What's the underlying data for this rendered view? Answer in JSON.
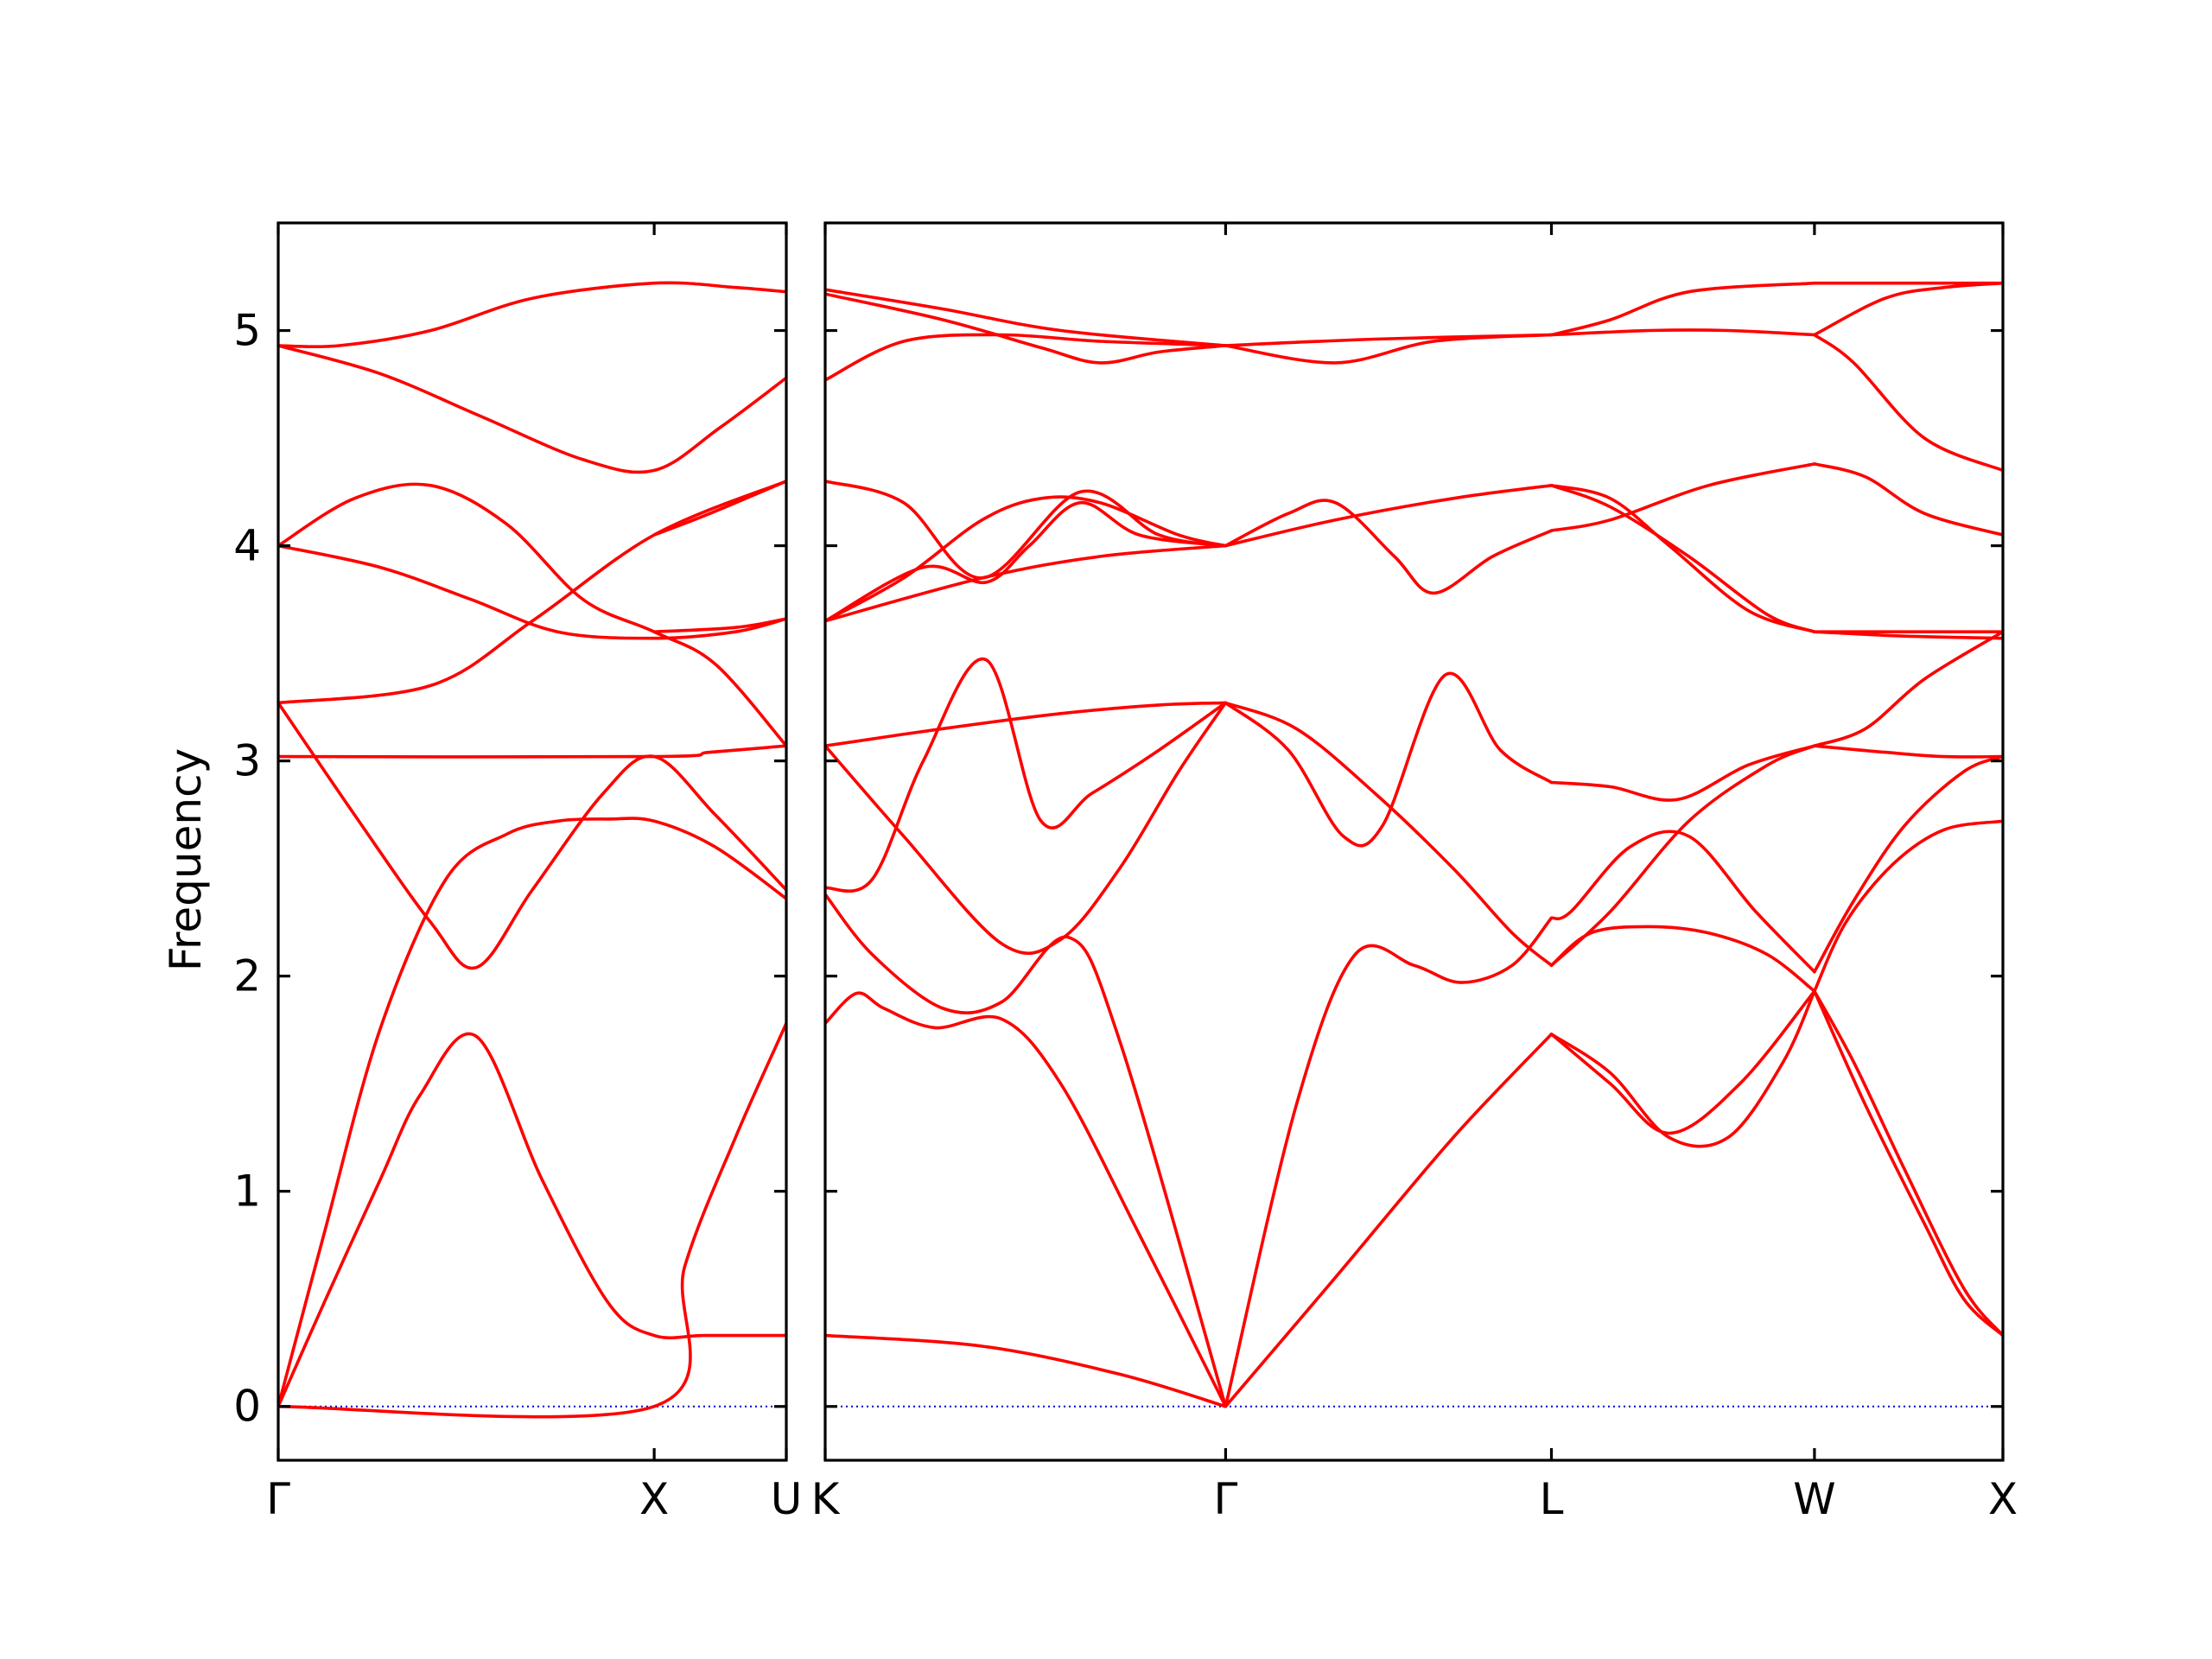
{
  "chart_data": {
    "type": "line",
    "title": "",
    "ylabel": "Frequency",
    "ylim": [
      -0.25,
      5.5
    ],
    "yticks": [
      0,
      1,
      2,
      3,
      4,
      5
    ],
    "grid": false,
    "colors": {
      "band": "#ff0000",
      "zero_line": "#0000cc",
      "axes": "#000000"
    },
    "panels": [
      {
        "xlim": [
          0,
          1.0
        ],
        "xticks": [
          {
            "pos": 0.0,
            "label": "Γ"
          },
          {
            "pos": 0.74,
            "label": "X"
          },
          {
            "pos": 1.0,
            "label": "U"
          }
        ],
        "series": [
          {
            "x": [
              0,
              0.09,
              0.2,
              0.28,
              0.39,
              0.52,
              0.65,
              0.74,
              0.84,
              1.0
            ],
            "y": [
              0,
              0.48,
              1.05,
              1.45,
              1.72,
              1.05,
              0.48,
              0.33,
              0.33,
              0.33
            ]
          },
          {
            "x": [
              0,
              0.74,
              0.8,
              0.9,
              1.0
            ],
            "y": [
              0,
              0,
              0.65,
              1.25,
              1.78
            ]
          },
          {
            "x": [
              0,
              0.09,
              0.2,
              0.33,
              0.45,
              0.55,
              0.65,
              0.74,
              0.86,
              1.0
            ],
            "y": [
              0,
              0.8,
              1.75,
              2.45,
              2.66,
              2.72,
              2.73,
              2.72,
              2.6,
              2.36
            ]
          },
          {
            "x": [
              0,
              0.15,
              0.3,
              0.39,
              0.5,
              0.64,
              0.74,
              0.86,
              1.0
            ],
            "y": [
              3.27,
              2.75,
              2.25,
              2.04,
              2.4,
              2.85,
              3.02,
              2.75,
              2.4
            ]
          },
          {
            "x": [
              0,
              0.3,
              0.5,
              0.74,
              1.0
            ],
            "y": [
              3.27,
              3.35,
              3.65,
              4.05,
              4.3
            ]
          },
          {
            "x": [
              0,
              0.2,
              0.38,
              0.55,
              0.74,
              0.9,
              1.0
            ],
            "y": [
              4.0,
              3.9,
              3.75,
              3.6,
              3.57,
              3.6,
              3.66
            ]
          },
          {
            "x": [
              0,
              0.15,
              0.3,
              0.45,
              0.6,
              0.74,
              0.86,
              1.0
            ],
            "y": [
              4.0,
              4.22,
              4.28,
              4.1,
              3.75,
              3.6,
              3.45,
              3.07
            ]
          },
          {
            "x": [
              0,
              0.74,
              1.0
            ],
            "y": [
              0.0,
              0.0,
              0.0
            ],
            "hidden": true
          },
          {
            "x": [
              0,
              0.74,
              0.85,
              1.0
            ],
            "y": [
              3.02,
              3.02,
              3.04,
              3.07
            ]
          },
          {
            "x": [
              0,
              0.2,
              0.4,
              0.6,
              0.74,
              0.87,
              1.0
            ],
            "y": [
              4.93,
              4.8,
              4.6,
              4.4,
              4.35,
              4.55,
              4.78
            ]
          },
          {
            "x": [
              0,
              0.12,
              0.3,
              0.5,
              0.74,
              0.9,
              1.0
            ],
            "y": [
              4.93,
              4.93,
              5.0,
              5.15,
              5.22,
              5.2,
              5.18
            ]
          },
          {
            "x": [
              0.74,
              0.85,
              1.0
            ],
            "y": [
              4.05,
              4.15,
              4.3
            ]
          },
          {
            "x": [
              0.74,
              0.9,
              1.0
            ],
            "y": [
              3.6,
              3.62,
              3.66
            ]
          }
        ]
      },
      {
        "xlim": [
          0,
          3.0
        ],
        "xticks": [
          {
            "pos": 0.0,
            "label": "K"
          },
          {
            "pos": 1.02,
            "label": "Γ"
          },
          {
            "pos": 1.85,
            "label": "L"
          },
          {
            "pos": 2.52,
            "label": "W"
          },
          {
            "pos": 3.0,
            "label": "X"
          }
        ],
        "series": [
          {
            "x": [
              0,
              0.4,
              0.75,
              1.02
            ],
            "y": [
              0.33,
              0.28,
              0.15,
              0.0
            ]
          },
          {
            "x": [
              0,
              0.08,
              0.15,
              0.28,
              0.45,
              0.6,
              0.8,
              1.02
            ],
            "y": [
              1.78,
              1.92,
              1.85,
              1.76,
              1.8,
              1.5,
              0.8,
              0.0
            ]
          },
          {
            "x": [
              0,
              0.12,
              0.3,
              0.45,
              0.62,
              0.75,
              1.02
            ],
            "y": [
              2.38,
              2.1,
              1.85,
              1.88,
              2.18,
              1.7,
              0.0
            ]
          },
          {
            "x": [
              0,
              0.12,
              0.25,
              0.41,
              0.55,
              0.68,
              0.85,
              1.02
            ],
            "y": [
              2.41,
              2.45,
              3.0,
              3.47,
              2.72,
              2.85,
              3.05,
              3.27
            ]
          },
          {
            "x": [
              0,
              0.2,
              0.45,
              0.6,
              0.75,
              0.9,
              1.02
            ],
            "y": [
              3.07,
              2.65,
              2.15,
              2.17,
              2.5,
              2.95,
              3.27
            ]
          },
          {
            "x": [
              0,
              0.3,
              0.6,
              0.85,
              1.02
            ],
            "y": [
              3.07,
              3.15,
              3.22,
              3.26,
              3.27
            ]
          },
          {
            "x": [
              0,
              0.2,
              0.4,
              0.55,
              0.7,
              0.9,
              1.02
            ],
            "y": [
              3.65,
              3.85,
              4.12,
              4.22,
              4.2,
              4.05,
              4.0
            ]
          },
          {
            "x": [
              0,
              0.25,
              0.41,
              0.52,
              0.65,
              0.8,
              1.02
            ],
            "y": [
              3.65,
              3.9,
              3.83,
              4.0,
              4.2,
              4.05,
              4.0
            ]
          },
          {
            "x": [
              0,
              0.4,
              0.7,
              1.02
            ],
            "y": [
              3.65,
              3.85,
              3.95,
              4.0
            ]
          },
          {
            "x": [
              0,
              0.2,
              0.4,
              0.65,
              0.85,
              1.02
            ],
            "y": [
              4.3,
              4.2,
              3.85,
              4.25,
              4.05,
              4.0
            ]
          },
          {
            "x": [
              0,
              0.2,
              0.45,
              0.7,
              1.02
            ],
            "y": [
              4.77,
              4.95,
              4.98,
              4.95,
              4.93
            ]
          },
          {
            "x": [
              0,
              0.3,
              0.55,
              0.7,
              0.85,
              1.02
            ],
            "y": [
              5.17,
              5.05,
              4.92,
              4.85,
              4.9,
              4.93
            ]
          },
          {
            "x": [
              0,
              0.3,
              0.6,
              1.02
            ],
            "y": [
              5.19,
              5.1,
              5.0,
              4.93
            ]
          },
          {
            "x": [
              1.02,
              1.3,
              1.6,
              1.85
            ],
            "y": [
              0.0,
              0.6,
              1.25,
              1.73
            ]
          },
          {
            "x": [
              1.02,
              1.2,
              1.35,
              1.5,
              1.62,
              1.75,
              1.85
            ],
            "y": [
              0.0,
              1.4,
              2.1,
              2.05,
              1.97,
              2.05,
              2.27
            ]
          },
          {
            "x": [
              1.02,
              1.18,
              1.32,
              1.42,
              1.58,
              1.72,
              1.85
            ],
            "y": [
              3.27,
              3.05,
              2.65,
              2.7,
              3.4,
              3.05,
              2.9
            ]
          },
          {
            "x": [
              1.02,
              1.2,
              1.4,
              1.6,
              1.75,
              1.85
            ],
            "y": [
              3.27,
              3.15,
              2.85,
              2.5,
              2.2,
              2.05
            ]
          },
          {
            "x": [
              1.02,
              1.3,
              1.6,
              1.85
            ],
            "y": [
              4.0,
              4.12,
              4.22,
              4.28
            ]
          },
          {
            "x": [
              1.02,
              1.18,
              1.3,
              1.45,
              1.55,
              1.7,
              1.85
            ],
            "y": [
              4.0,
              4.15,
              4.2,
              3.95,
              3.78,
              3.95,
              4.07
            ]
          },
          {
            "x": [
              1.02,
              1.3,
              1.55,
              1.85
            ],
            "y": [
              4.93,
              4.85,
              4.95,
              4.98
            ]
          },
          {
            "x": [
              1.02,
              1.4,
              1.85
            ],
            "y": [
              4.93,
              4.96,
              4.98
            ]
          },
          {
            "x": [
              1.85,
              2.0,
              2.15,
              2.33,
              2.52
            ],
            "y": [
              1.73,
              1.5,
              1.27,
              1.5,
              1.93
            ]
          },
          {
            "x": [
              1.85,
              2.0,
              2.15,
              2.3,
              2.44,
              2.52
            ],
            "y": [
              1.73,
              1.55,
              1.25,
              1.25,
              1.6,
              1.93
            ]
          },
          {
            "x": [
              1.85,
              1.95,
              2.1,
              2.25,
              2.4,
              2.52
            ],
            "y": [
              2.05,
              2.2,
              2.23,
              2.2,
              2.1,
              1.93
            ]
          },
          {
            "x": [
              1.85,
              1.9,
              2.05,
              2.2,
              2.37,
              2.52
            ],
            "y": [
              2.27,
              2.3,
              2.6,
              2.65,
              2.3,
              2.02
            ]
          },
          {
            "x": [
              1.85,
              2.0,
              2.17,
              2.35,
              2.52
            ],
            "y": [
              2.9,
              2.88,
              2.82,
              2.98,
              3.07
            ]
          },
          {
            "x": [
              1.85,
              2.0,
              2.2,
              2.4,
              2.52
            ],
            "y": [
              2.05,
              2.3,
              2.72,
              2.98,
              3.07
            ]
          },
          {
            "x": [
              1.85,
              2.0,
              2.2,
              2.4,
              2.52
            ],
            "y": [
              4.28,
              4.18,
              3.95,
              3.68,
              3.6
            ]
          },
          {
            "x": [
              1.85,
              2.0,
              2.15,
              2.35,
              2.52
            ],
            "y": [
              4.28,
              4.22,
              4.0,
              3.7,
              3.6
            ]
          },
          {
            "x": [
              1.85,
              2.0,
              2.25,
              2.52
            ],
            "y": [
              4.07,
              4.12,
              4.28,
              4.38
            ]
          },
          {
            "x": [
              1.85,
              2.1,
              2.3,
              2.52
            ],
            "y": [
              4.98,
              5.0,
              5.0,
              4.98
            ]
          },
          {
            "x": [
              1.85,
              2.0,
              2.2,
              2.52
            ],
            "y": [
              4.98,
              5.05,
              5.18,
              5.22
            ]
          },
          {
            "x": [
              2.52,
              2.65,
              2.8,
              2.9,
              3.0
            ],
            "y": [
              1.93,
              1.4,
              0.85,
              0.5,
              0.33
            ]
          },
          {
            "x": [
              2.52,
              2.62,
              2.75,
              2.9,
              3.0
            ],
            "y": [
              1.93,
              1.6,
              1.1,
              0.55,
              0.33
            ]
          },
          {
            "x": [
              2.52,
              2.6,
              2.72,
              2.85,
              3.0
            ],
            "y": [
              1.93,
              2.25,
              2.52,
              2.68,
              2.72
            ]
          },
          {
            "x": [
              2.52,
              2.62,
              2.75,
              2.9,
              3.0
            ],
            "y": [
              2.02,
              2.35,
              2.7,
              2.95,
              3.02
            ]
          },
          {
            "x": [
              2.52,
              2.7,
              2.85,
              3.0
            ],
            "y": [
              3.07,
              3.04,
              3.02,
              3.02
            ]
          },
          {
            "x": [
              2.52,
              2.65,
              2.8,
              3.0
            ],
            "y": [
              3.07,
              3.15,
              3.38,
              3.6
            ]
          },
          {
            "x": [
              2.52,
              2.75,
              3.0
            ],
            "y": [
              3.6,
              3.58,
              3.57
            ]
          },
          {
            "x": [
              2.52,
              2.75,
              3.0
            ],
            "y": [
              3.6,
              3.6,
              3.6
            ]
          },
          {
            "x": [
              2.52,
              2.65,
              2.8,
              3.0
            ],
            "y": [
              4.38,
              4.32,
              4.15,
              4.05
            ]
          },
          {
            "x": [
              2.52,
              2.62,
              2.8,
              3.0
            ],
            "y": [
              4.98,
              4.85,
              4.5,
              4.35
            ]
          },
          {
            "x": [
              2.52,
              2.7,
              2.85,
              3.0
            ],
            "y": [
              4.98,
              5.15,
              5.2,
              5.22
            ]
          },
          {
            "x": [
              2.52,
              2.75,
              3.0
            ],
            "y": [
              5.22,
              5.22,
              5.22
            ]
          }
        ]
      }
    ]
  }
}
